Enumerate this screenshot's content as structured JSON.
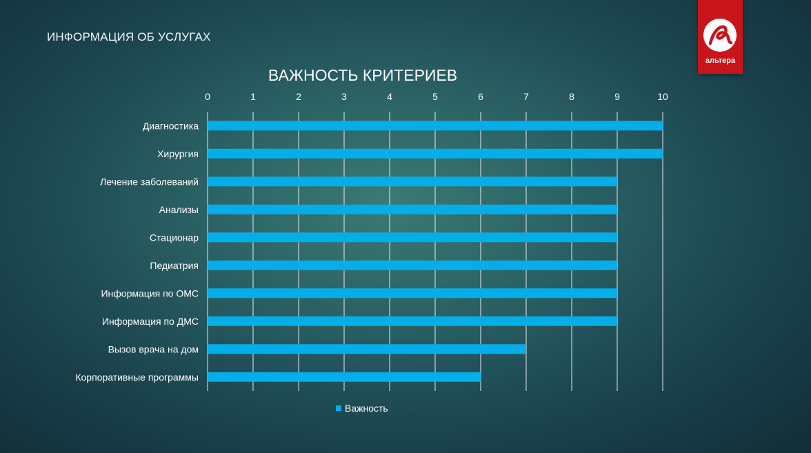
{
  "slide": {
    "title": "ИНФОРМАЦИЯ ОБ УСЛУГАХ"
  },
  "logo": {
    "text": "альтера",
    "icon": "altera-logo-icon",
    "color": "#c8151c"
  },
  "chart_data": {
    "type": "bar",
    "orientation": "horizontal",
    "title": "ВАЖНОСТЬ КРИТЕРИЕВ",
    "categories": [
      "Диагностика",
      "Хирургия",
      "Лечение заболеваний",
      "Анализы",
      "Стационар",
      "Педиатрия",
      "Информация по ОМС",
      "Информация по ДМС",
      "Вызов врача на дом",
      "Корпоративные программы"
    ],
    "series": [
      {
        "name": "Важность",
        "values": [
          10,
          10,
          9,
          9,
          9,
          9,
          9,
          9,
          7,
          6
        ],
        "color": "#05aee8"
      }
    ],
    "xlim": [
      0,
      10
    ],
    "x_ticks": [
      "0",
      "1",
      "2",
      "3",
      "4",
      "5",
      "6",
      "7",
      "8",
      "9",
      "10"
    ],
    "x_axis_position": "top",
    "grid": true,
    "legend_position": "bottom"
  }
}
